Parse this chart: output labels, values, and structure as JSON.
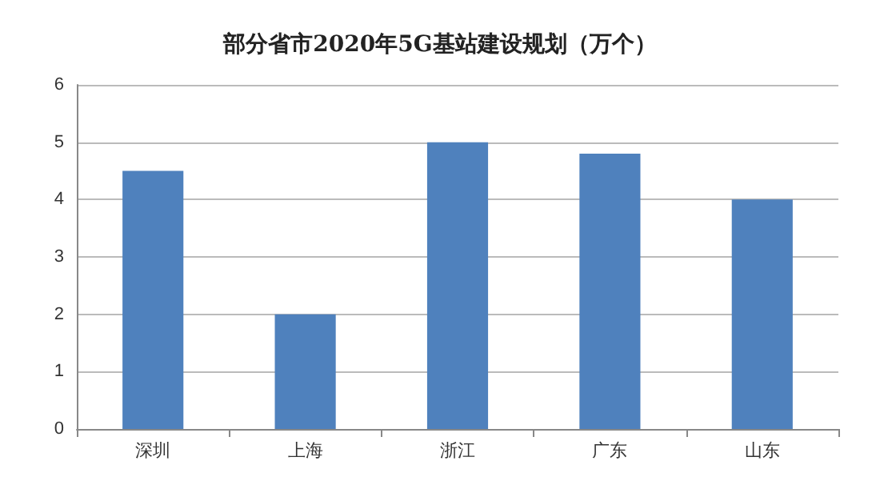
{
  "chart_data": {
    "type": "bar",
    "title": "部分省市2020年5G基站建设规划（万个）",
    "categories": [
      "深圳",
      "上海",
      "浙江",
      "广东",
      "山东"
    ],
    "values": [
      4.5,
      2,
      5,
      4.8,
      4
    ],
    "color": "#4f81bd",
    "ylim": [
      0,
      6
    ],
    "yticks": [
      0,
      1,
      2,
      3,
      4,
      5,
      6
    ],
    "grid": "y"
  }
}
